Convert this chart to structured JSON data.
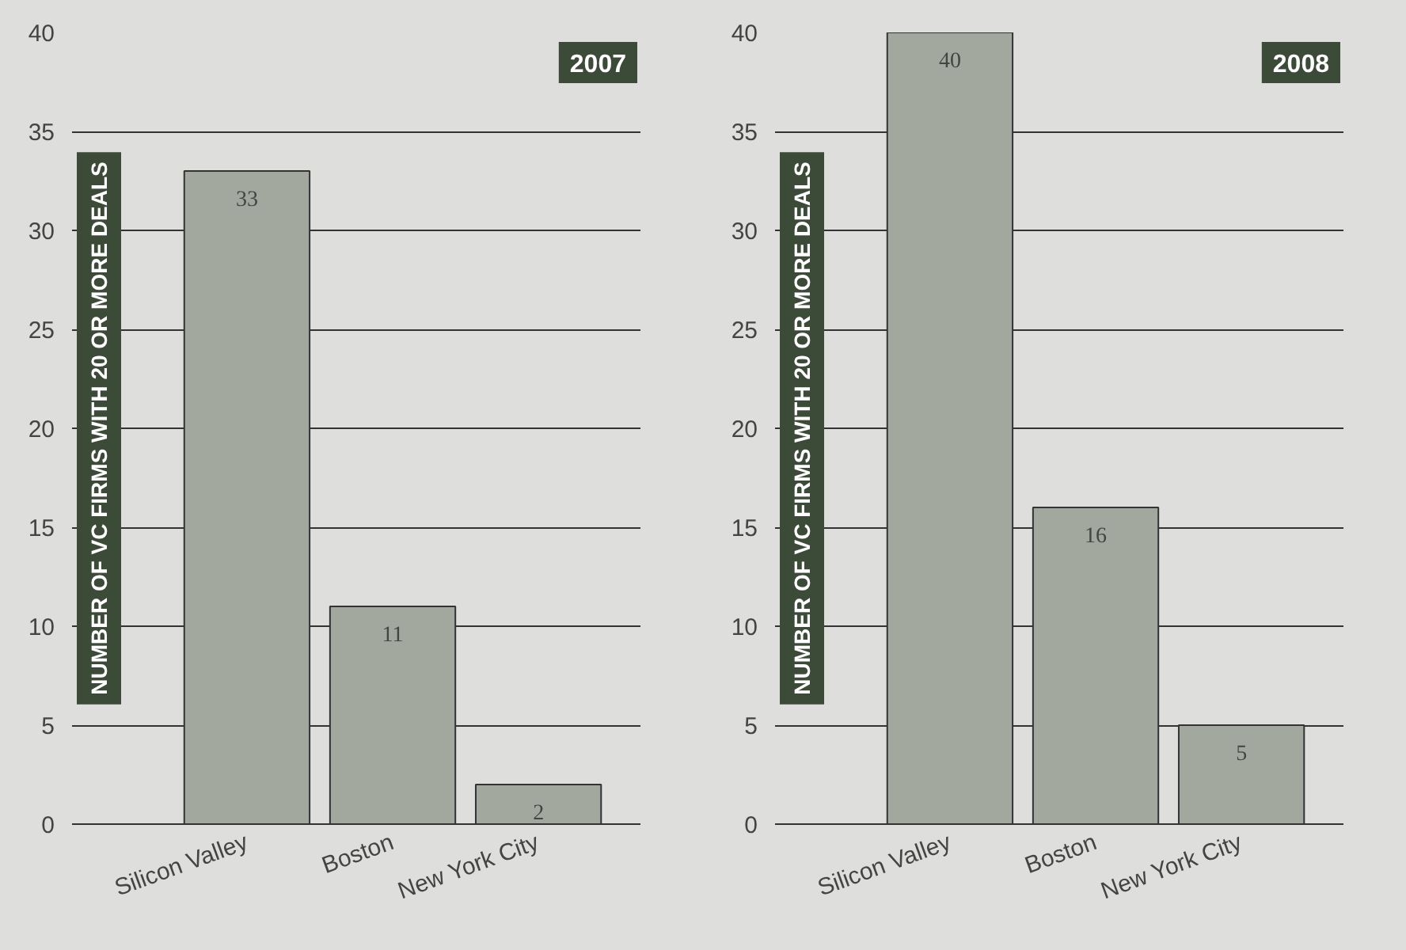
{
  "chart_data": [
    {
      "type": "bar",
      "title": "2007",
      "ylabel": "NUMBER OF VC FIRMS WITH 20 OR MORE DEALS",
      "categories": [
        "Silicon Valley",
        "Boston",
        "New York City"
      ],
      "values": [
        33,
        11,
        2
      ],
      "color": "#a3a89e",
      "ylim": [
        0,
        40
      ],
      "yticks": [
        0,
        5,
        10,
        15,
        20,
        25,
        30,
        35,
        40
      ],
      "grid": "y",
      "data_labels": true
    },
    {
      "type": "bar",
      "title": "2008",
      "ylabel": "NUMBER OF VC FIRMS WITH 20 OR MORE DEALS",
      "categories": [
        "Silicon Valley",
        "Boston",
        "New York City"
      ],
      "values": [
        40,
        16,
        5
      ],
      "color": "#a3a89e",
      "ylim": [
        0,
        40
      ],
      "yticks": [
        0,
        5,
        10,
        15,
        20,
        25,
        30,
        35,
        40
      ],
      "grid": "y",
      "data_labels": true
    }
  ]
}
